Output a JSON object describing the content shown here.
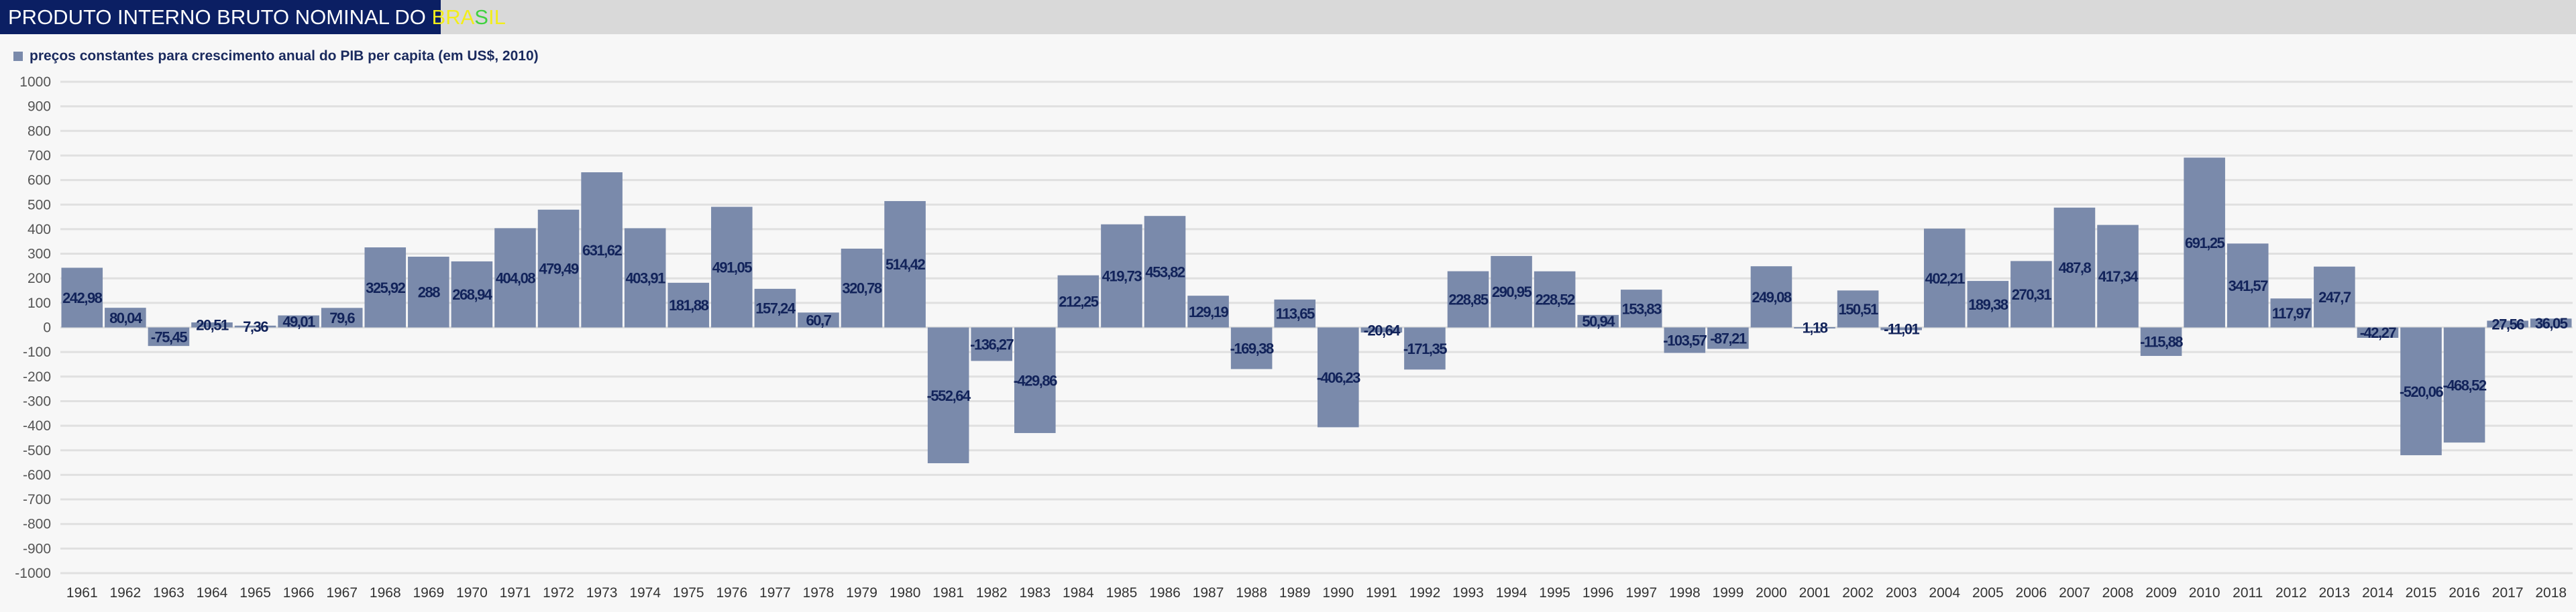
{
  "header": {
    "title_prefix": "PRODUTO INTERNO BRUTO NOMINAL DO ",
    "title_bra": "BRA",
    "title_s": "S",
    "title_il": "IL"
  },
  "chart_data": {
    "type": "bar",
    "title": "PRODUTO INTERNO BRUTO NOMINAL DO BRASIL",
    "legend": "preços constantes para crescimento anual do PIB per capita (em US$, 2010)",
    "legend_position": "top-left",
    "xlabel": "",
    "ylabel": "",
    "ylim": [
      -1000,
      1000
    ],
    "yticks": [
      1000,
      900,
      800,
      700,
      600,
      500,
      400,
      300,
      200,
      100,
      0,
      -100,
      -200,
      -300,
      -400,
      -500,
      -600,
      -700,
      -800,
      -900,
      -1000
    ],
    "grid": true,
    "bar_color": "#7a8aab",
    "categories": [
      "1961",
      "1962",
      "1963",
      "1964",
      "1965",
      "1966",
      "1967",
      "1968",
      "1969",
      "1970",
      "1971",
      "1972",
      "1973",
      "1974",
      "1975",
      "1976",
      "1977",
      "1978",
      "1979",
      "1980",
      "1981",
      "1982",
      "1983",
      "1984",
      "1985",
      "1986",
      "1987",
      "1988",
      "1989",
      "1990",
      "1991",
      "1992",
      "1993",
      "1994",
      "1995",
      "1996",
      "1997",
      "1998",
      "1999",
      "2000",
      "2001",
      "2002",
      "2003",
      "2004",
      "2005",
      "2006",
      "2007",
      "2008",
      "2009",
      "2010",
      "2011",
      "2012",
      "2013",
      "2014",
      "2015",
      "2016",
      "2017",
      "2018"
    ],
    "values": [
      242.98,
      80.04,
      -75.45,
      20.51,
      7.36,
      49.01,
      79.6,
      325.92,
      288,
      268.94,
      404.08,
      479.49,
      631.62,
      403.91,
      181.88,
      491.05,
      157.24,
      60.7,
      320.78,
      514.42,
      -552.64,
      -136.27,
      -429.86,
      212.25,
      419.73,
      453.82,
      129.19,
      -169.38,
      113.65,
      -406.23,
      -20.64,
      -171.35,
      228.85,
      290.95,
      228.52,
      50.94,
      153.83,
      -103.57,
      -87.21,
      249.08,
      1.18,
      150.51,
      -11.01,
      402.21,
      189.38,
      270.31,
      487.8,
      417.34,
      -115.88,
      691.25,
      341.57,
      117.97,
      247.7,
      -42.27,
      -520.06,
      -468.52,
      27.56,
      36.05
    ]
  }
}
